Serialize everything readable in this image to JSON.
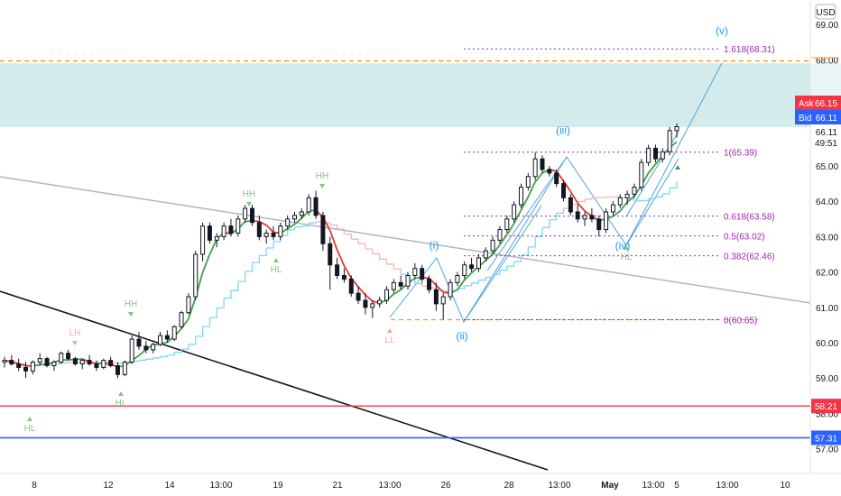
{
  "chart_data": {
    "type": "candlestick",
    "currency": "USD",
    "y_ticks": [
      "69.00",
      "68.00",
      "65.00",
      "64.00",
      "63.00",
      "62.00",
      "61.00",
      "60.00",
      "59.00",
      "58.00",
      "57.00"
    ],
    "x_ticks": [
      "8",
      "12",
      "14",
      "13:00",
      "19",
      "21",
      "13:00",
      "26",
      "28",
      "13:00",
      "May",
      "13:00",
      "5",
      "13:00",
      "10"
    ],
    "ylim": [
      56.7,
      69.7
    ],
    "price_tags": {
      "ask": {
        "label": "Ask",
        "value": "66.15",
        "color": "#f23645"
      },
      "bid": {
        "label": "Bid",
        "value": "66.11",
        "color": "#2962ff"
      },
      "last": {
        "value": "66.11",
        "countdown": "49:51"
      },
      "level_red": {
        "value": "58.21",
        "color": "#f23645"
      },
      "level_blue": {
        "value": "57.31",
        "color": "#2962ff"
      }
    },
    "zone": {
      "low": 66.1,
      "high": 67.9,
      "color": "#d3ebea"
    },
    "lines": {
      "orange_top": 67.97,
      "orange_bottom": 60.65,
      "red_h": 58.21,
      "blue_h": 57.31
    },
    "fib_levels": [
      {
        "label": "1.618(68.31)",
        "value": 68.31
      },
      {
        "label": "1(65.39)",
        "value": 65.39
      },
      {
        "label": "0.618(63.58)",
        "value": 63.58
      },
      {
        "label": "0.5(63.02)",
        "value": 63.02
      },
      {
        "label": "0.382(62.46)",
        "value": 62.46
      },
      {
        "label": "0(60.65)",
        "value": 60.65
      }
    ],
    "wave_labels": [
      {
        "label": "(i)",
        "price": 62.25
      },
      {
        "label": "(ii)",
        "price": 60.65
      },
      {
        "label": "(iii)",
        "price": 65.39
      },
      {
        "label": "(iv)",
        "price": 63.0
      },
      {
        "label": "(v)",
        "price": 68.31
      }
    ],
    "pivot_labels": [
      {
        "label": "LH",
        "price": 59.8,
        "color": "#f7a3a3"
      },
      {
        "label": "HH",
        "price": 60.9,
        "color": "#81c784"
      },
      {
        "label": "HH",
        "price": 63.9,
        "color": "#81c784"
      },
      {
        "label": "HH",
        "price": 64.6,
        "color": "#81c784"
      },
      {
        "label": "HL",
        "price": 62.5,
        "color": "#81c784"
      },
      {
        "label": "HL",
        "price": 58.8,
        "color": "#81c784"
      },
      {
        "label": "HL",
        "price": 58.1,
        "color": "#81c784"
      },
      {
        "label": "LL",
        "price": 60.6,
        "color": "#f7a3a3"
      },
      {
        "label": "HL",
        "price": 62.9,
        "color": "#81c784"
      }
    ],
    "candles": [
      [
        59.45,
        59.6,
        59.3,
        59.5
      ],
      [
        59.5,
        59.65,
        59.35,
        59.4
      ],
      [
        59.4,
        59.55,
        59.2,
        59.3
      ],
      [
        59.3,
        59.45,
        59.0,
        59.2
      ],
      [
        59.2,
        59.5,
        59.1,
        59.45
      ],
      [
        59.45,
        59.7,
        59.35,
        59.55
      ],
      [
        59.55,
        59.6,
        59.3,
        59.35
      ],
      [
        59.35,
        59.5,
        59.2,
        59.45
      ],
      [
        59.45,
        59.75,
        59.4,
        59.7
      ],
      [
        59.7,
        59.8,
        59.5,
        59.55
      ],
      [
        59.55,
        59.6,
        59.35,
        59.4
      ],
      [
        59.4,
        59.55,
        59.25,
        59.5
      ],
      [
        59.5,
        59.65,
        59.35,
        59.4
      ],
      [
        59.4,
        59.5,
        59.2,
        59.3
      ],
      [
        59.3,
        59.55,
        59.25,
        59.5
      ],
      [
        59.5,
        59.6,
        59.3,
        59.35
      ],
      [
        59.35,
        59.45,
        59.0,
        59.1
      ],
      [
        59.1,
        59.5,
        59.05,
        59.45
      ],
      [
        59.45,
        60.2,
        59.4,
        60.1
      ],
      [
        60.1,
        60.3,
        59.8,
        59.9
      ],
      [
        59.9,
        60.05,
        59.7,
        59.8
      ],
      [
        59.8,
        60.0,
        59.7,
        59.95
      ],
      [
        59.95,
        60.3,
        59.9,
        60.2
      ],
      [
        60.2,
        60.35,
        60.0,
        60.1
      ],
      [
        60.1,
        60.5,
        60.05,
        60.45
      ],
      [
        60.45,
        60.9,
        60.4,
        60.85
      ],
      [
        60.85,
        61.4,
        60.8,
        61.3
      ],
      [
        61.3,
        62.6,
        61.2,
        62.5
      ],
      [
        62.5,
        63.4,
        62.3,
        63.3
      ],
      [
        63.3,
        63.4,
        62.8,
        62.9
      ],
      [
        62.9,
        63.1,
        62.7,
        63.0
      ],
      [
        63.0,
        63.4,
        62.9,
        63.3
      ],
      [
        63.3,
        63.5,
        63.0,
        63.1
      ],
      [
        63.1,
        63.6,
        63.0,
        63.5
      ],
      [
        63.5,
        63.9,
        63.4,
        63.8
      ],
      [
        63.8,
        63.9,
        63.3,
        63.4
      ],
      [
        63.4,
        63.6,
        62.9,
        63.0
      ],
      [
        63.0,
        63.2,
        62.8,
        63.1
      ],
      [
        63.1,
        63.3,
        62.9,
        63.0
      ],
      [
        63.0,
        63.4,
        62.9,
        63.3
      ],
      [
        63.3,
        63.6,
        63.2,
        63.5
      ],
      [
        63.5,
        63.7,
        63.4,
        63.6
      ],
      [
        63.6,
        63.8,
        63.5,
        63.7
      ],
      [
        63.7,
        64.2,
        63.6,
        64.1
      ],
      [
        64.1,
        64.3,
        63.5,
        63.6
      ],
      [
        63.6,
        63.7,
        62.6,
        62.8
      ],
      [
        62.8,
        63.0,
        61.5,
        62.2
      ],
      [
        62.2,
        62.4,
        61.8,
        61.9
      ],
      [
        61.9,
        62.1,
        61.7,
        61.8
      ],
      [
        61.8,
        61.9,
        61.3,
        61.4
      ],
      [
        61.4,
        61.6,
        61.1,
        61.2
      ],
      [
        61.2,
        61.4,
        60.8,
        61.0
      ],
      [
        61.0,
        61.2,
        60.7,
        61.1
      ],
      [
        61.1,
        61.3,
        61.0,
        61.2
      ],
      [
        61.2,
        61.6,
        61.1,
        61.5
      ],
      [
        61.5,
        61.8,
        61.4,
        61.7
      ],
      [
        61.7,
        61.9,
        61.5,
        61.6
      ],
      [
        61.6,
        62.0,
        61.5,
        61.9
      ],
      [
        61.9,
        62.25,
        61.8,
        62.1
      ],
      [
        62.1,
        62.2,
        61.7,
        61.8
      ],
      [
        61.8,
        61.9,
        61.4,
        61.5
      ],
      [
        61.5,
        61.7,
        60.9,
        61.1
      ],
      [
        61.1,
        61.4,
        60.65,
        61.3
      ],
      [
        61.3,
        61.8,
        61.2,
        61.7
      ],
      [
        61.7,
        62.0,
        61.6,
        61.9
      ],
      [
        61.9,
        62.3,
        61.8,
        62.2
      ],
      [
        62.2,
        62.4,
        62.0,
        62.1
      ],
      [
        62.1,
        62.5,
        62.0,
        62.4
      ],
      [
        62.4,
        62.7,
        62.3,
        62.6
      ],
      [
        62.6,
        63.0,
        62.5,
        62.9
      ],
      [
        62.9,
        63.3,
        62.8,
        63.2
      ],
      [
        63.2,
        63.6,
        63.1,
        63.5
      ],
      [
        63.5,
        64.0,
        63.4,
        63.9
      ],
      [
        63.9,
        64.5,
        63.8,
        64.4
      ],
      [
        64.4,
        64.8,
        64.3,
        64.7
      ],
      [
        64.7,
        65.39,
        64.6,
        65.2
      ],
      [
        65.2,
        65.3,
        64.8,
        64.9
      ],
      [
        64.9,
        65.0,
        64.7,
        64.8
      ],
      [
        64.8,
        64.9,
        64.4,
        64.5
      ],
      [
        64.5,
        64.6,
        64.0,
        64.1
      ],
      [
        64.1,
        64.2,
        63.6,
        63.7
      ],
      [
        63.7,
        63.9,
        63.4,
        63.5
      ],
      [
        63.5,
        63.7,
        63.3,
        63.6
      ],
      [
        63.6,
        63.8,
        63.4,
        63.5
      ],
      [
        63.5,
        63.6,
        63.0,
        63.2
      ],
      [
        63.2,
        63.8,
        63.1,
        63.7
      ],
      [
        63.7,
        64.0,
        63.6,
        63.9
      ],
      [
        63.9,
        64.2,
        63.8,
        64.1
      ],
      [
        64.1,
        64.3,
        63.9,
        64.2
      ],
      [
        64.2,
        64.5,
        64.1,
        64.4
      ],
      [
        64.4,
        65.2,
        64.3,
        65.1
      ],
      [
        65.1,
        65.6,
        65.0,
        65.5
      ],
      [
        65.5,
        65.6,
        65.1,
        65.2
      ],
      [
        65.2,
        65.5,
        65.1,
        65.4
      ],
      [
        65.4,
        66.1,
        65.3,
        66.0
      ],
      [
        66.0,
        66.2,
        65.8,
        66.11
      ]
    ]
  }
}
